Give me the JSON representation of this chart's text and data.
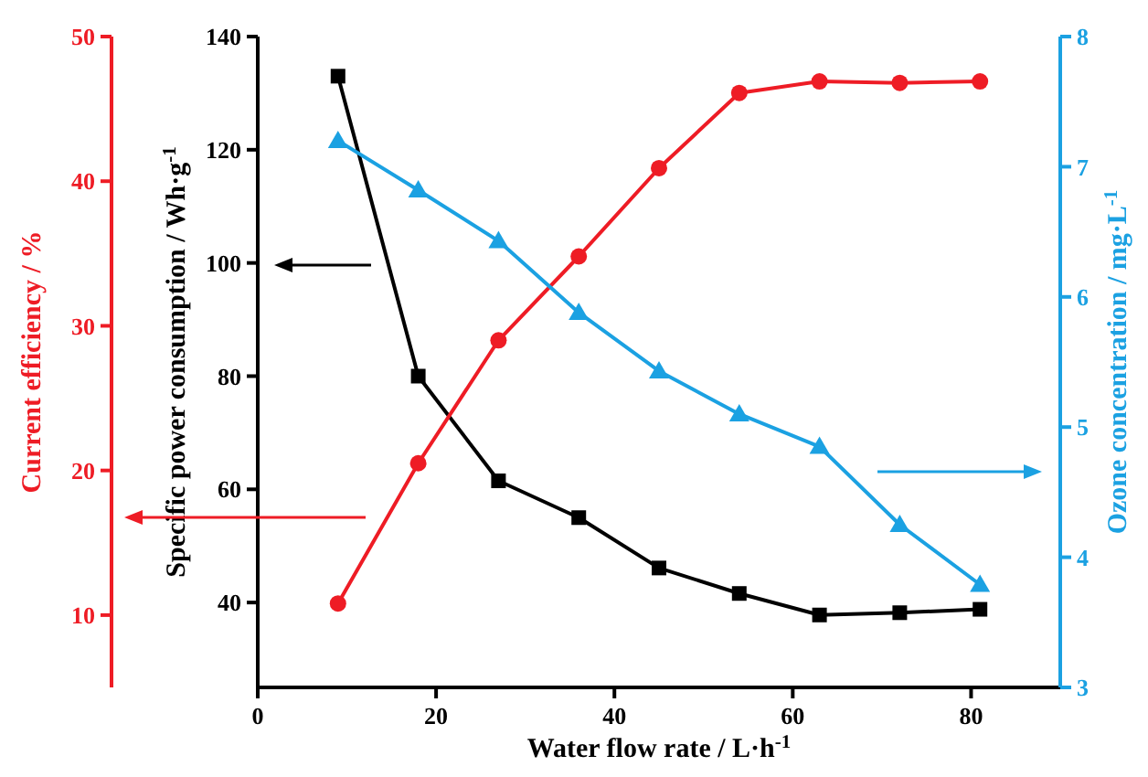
{
  "chart_data": {
    "type": "line",
    "xlabel": "Water flow rate / L·h$^{-1}$",
    "ylabel": "Specific power consumption / Wh·g$^{-1}$",
    "y2label": "Ozone concentration / mg·L$^{-1}$",
    "y3label": "Current efficiency / %",
    "x": [
      9,
      18,
      27,
      36,
      45,
      54,
      63,
      72,
      81
    ],
    "xlim": [
      0,
      90
    ],
    "xticks": [
      0,
      20,
      40,
      60,
      80
    ],
    "ylim": [
      25,
      140
    ],
    "yticks": [
      40,
      60,
      80,
      100,
      120,
      140
    ],
    "y2lim": [
      3,
      8
    ],
    "y2ticks": [
      3,
      4,
      5,
      6,
      7,
      8
    ],
    "y3lim": [
      5,
      50
    ],
    "y3ticks": [
      10,
      20,
      30,
      40,
      50
    ],
    "grid": false,
    "series": [
      {
        "color": "#000000",
        "marker": "square",
        "values": [
          133,
          80,
          61.5,
          55,
          46.1,
          41.6,
          37.8,
          38.2,
          38.8
        ]
      },
      {
        "color": "#ee1c25",
        "marker": "circle",
        "axis": "y3",
        "values": [
          10.8,
          20.5,
          29,
          34.8,
          40.9,
          46.1,
          46.9,
          46.8,
          46.9
        ]
      },
      {
        "color": "#1ba1e2",
        "marker": "triangle",
        "axis": "y2",
        "values": [
          7.2,
          6.82,
          6.43,
          5.88,
          5.43,
          5.1,
          4.85,
          4.25,
          3.79
        ]
      }
    ]
  }
}
